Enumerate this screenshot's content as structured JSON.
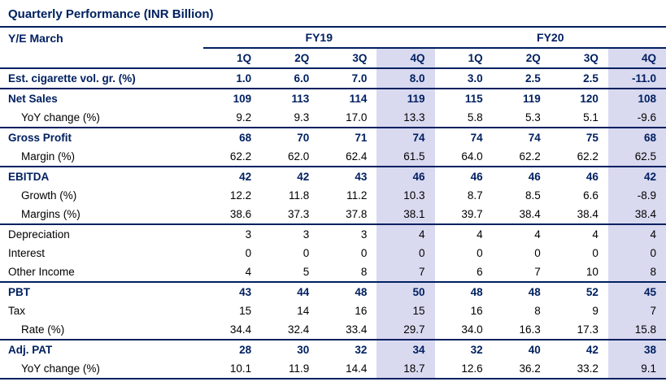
{
  "title": "Quarterly Performance (INR Billion)",
  "colors": {
    "accent": "#002060",
    "highlight": "#d9d9f0"
  },
  "table": {
    "ye_label": "Y/E March",
    "year_groups": [
      "FY19",
      "FY20"
    ],
    "quarters": [
      "1Q",
      "2Q",
      "3Q",
      "4Q",
      "1Q",
      "2Q",
      "3Q",
      "4Q"
    ],
    "highlighted_quarter": "4Q",
    "rows": [
      {
        "label": "Est. cigarette vol. gr. (%)",
        "bold": true,
        "indent": false,
        "sep": true,
        "values": [
          "1.0",
          "6.0",
          "7.0",
          "8.0",
          "3.0",
          "2.5",
          "2.5",
          "-11.0"
        ]
      },
      {
        "label": "Net Sales",
        "bold": true,
        "indent": false,
        "sep": false,
        "values": [
          "109",
          "113",
          "114",
          "119",
          "115",
          "119",
          "120",
          "108"
        ]
      },
      {
        "label": "YoY change (%)",
        "bold": false,
        "indent": true,
        "sep": true,
        "values": [
          "9.2",
          "9.3",
          "17.0",
          "13.3",
          "5.8",
          "5.3",
          "5.1",
          "-9.6"
        ]
      },
      {
        "label": "Gross Profit",
        "bold": true,
        "indent": false,
        "sep": false,
        "values": [
          "68",
          "70",
          "71",
          "74",
          "74",
          "74",
          "75",
          "68"
        ]
      },
      {
        "label": "Margin (%)",
        "bold": false,
        "indent": true,
        "sep": true,
        "values": [
          "62.2",
          "62.0",
          "62.4",
          "61.5",
          "64.0",
          "62.2",
          "62.2",
          "62.5"
        ]
      },
      {
        "label": "EBITDA",
        "bold": true,
        "indent": false,
        "sep": false,
        "values": [
          "42",
          "42",
          "43",
          "46",
          "46",
          "46",
          "46",
          "42"
        ]
      },
      {
        "label": "Growth (%)",
        "bold": false,
        "indent": true,
        "sep": false,
        "values": [
          "12.2",
          "11.8",
          "11.2",
          "10.3",
          "8.7",
          "8.5",
          "6.6",
          "-8.9"
        ]
      },
      {
        "label": "Margins (%)",
        "bold": false,
        "indent": true,
        "sep": true,
        "values": [
          "38.6",
          "37.3",
          "37.8",
          "38.1",
          "39.7",
          "38.4",
          "38.4",
          "38.4"
        ]
      },
      {
        "label": "Depreciation",
        "bold": false,
        "indent": false,
        "sep": false,
        "values": [
          "3",
          "3",
          "3",
          "4",
          "4",
          "4",
          "4",
          "4"
        ]
      },
      {
        "label": "Interest",
        "bold": false,
        "indent": false,
        "sep": false,
        "values": [
          "0",
          "0",
          "0",
          "0",
          "0",
          "0",
          "0",
          "0"
        ]
      },
      {
        "label": "Other Income",
        "bold": false,
        "indent": false,
        "sep": true,
        "values": [
          "4",
          "5",
          "8",
          "7",
          "6",
          "7",
          "10",
          "8"
        ]
      },
      {
        "label": "PBT",
        "bold": true,
        "indent": false,
        "sep": false,
        "values": [
          "43",
          "44",
          "48",
          "50",
          "48",
          "48",
          "52",
          "45"
        ]
      },
      {
        "label": "Tax",
        "bold": false,
        "indent": false,
        "sep": false,
        "values": [
          "15",
          "14",
          "16",
          "15",
          "16",
          "8",
          "9",
          "7"
        ]
      },
      {
        "label": "Rate (%)",
        "bold": false,
        "indent": true,
        "sep": true,
        "values": [
          "34.4",
          "32.4",
          "33.4",
          "29.7",
          "34.0",
          "16.3",
          "17.3",
          "15.8"
        ]
      },
      {
        "label": "Adj. PAT",
        "bold": true,
        "indent": false,
        "sep": false,
        "values": [
          "28",
          "30",
          "32",
          "34",
          "32",
          "40",
          "42",
          "38"
        ]
      },
      {
        "label": "YoY change (%)",
        "bold": false,
        "indent": true,
        "sep": true,
        "values": [
          "10.1",
          "11.9",
          "14.4",
          "18.7",
          "12.6",
          "36.2",
          "33.2",
          "9.1"
        ]
      }
    ]
  }
}
